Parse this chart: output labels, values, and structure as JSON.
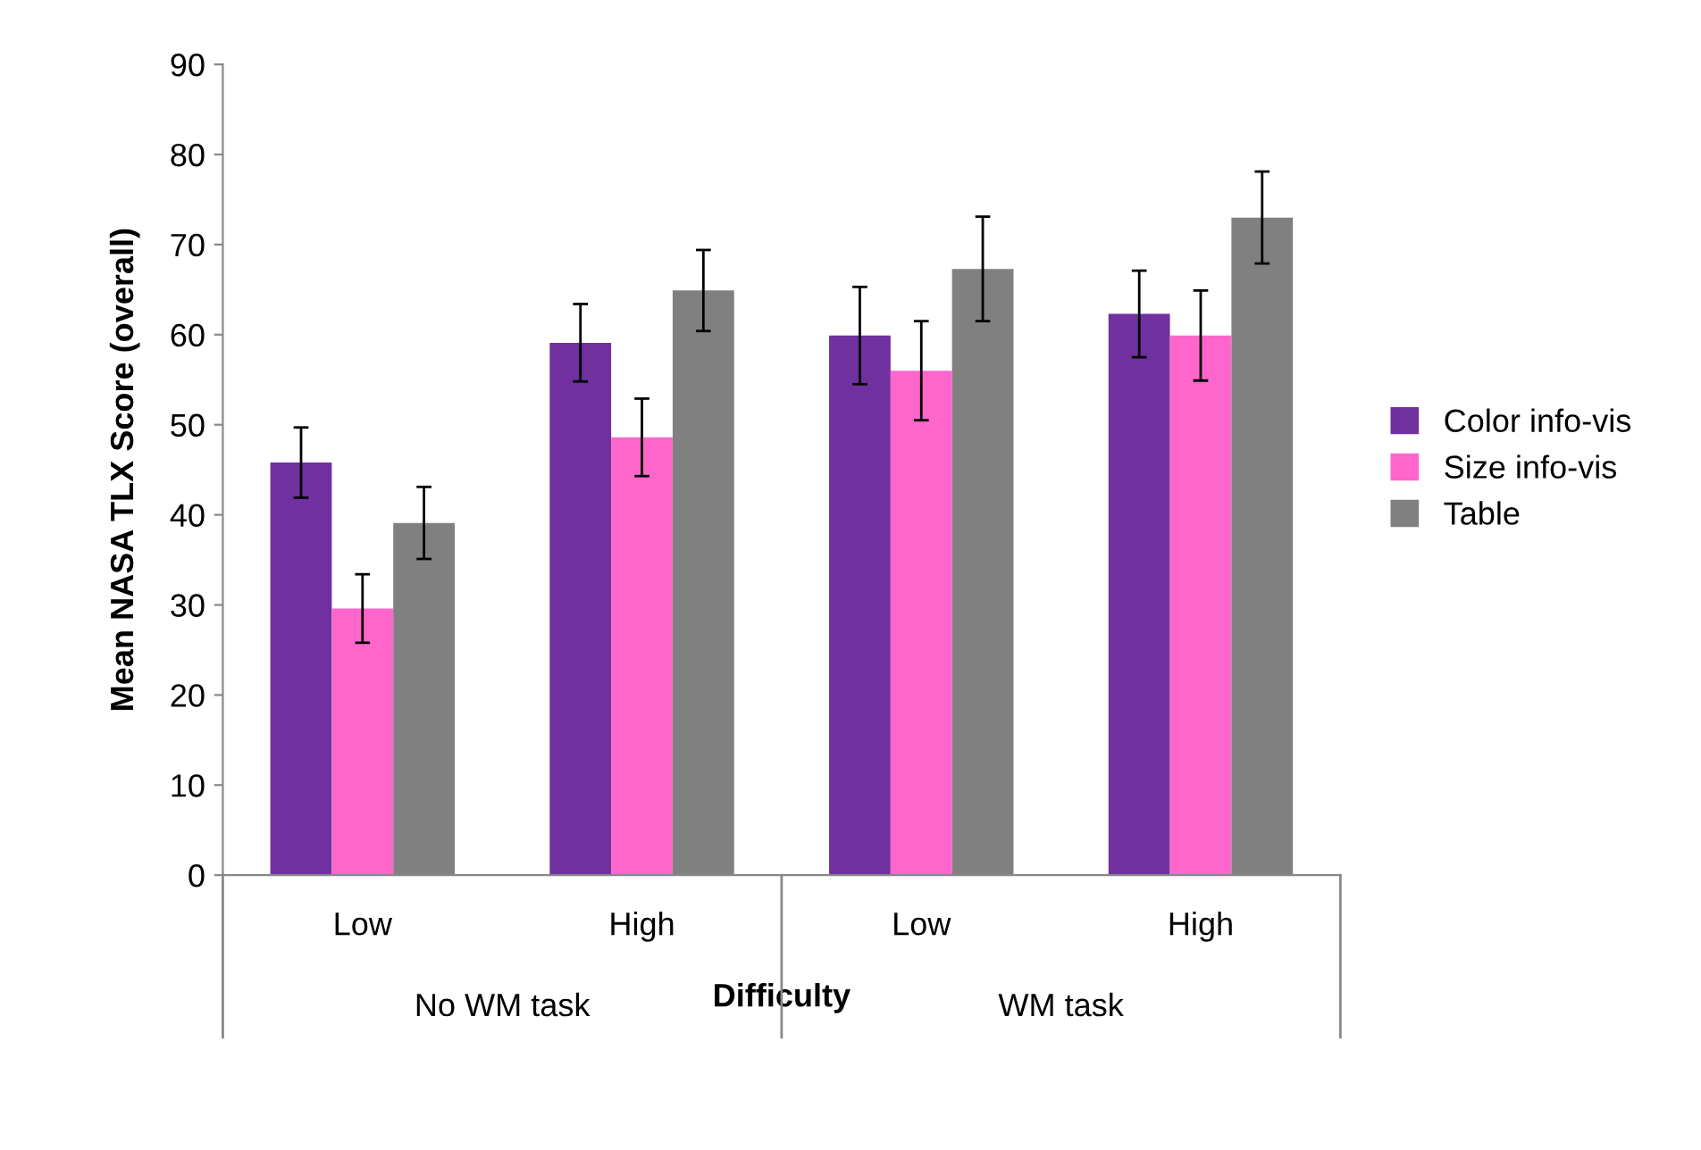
{
  "chart_data": {
    "type": "bar",
    "xlabel": "Difficulty",
    "ylabel": "Mean NASA TLX Score (overall)",
    "categories": [
      "Low",
      "High",
      "Low",
      "High"
    ],
    "annotations": [
      "No WM task",
      "WM task"
    ],
    "series": [
      {
        "name": "Color info-vis",
        "color": "#7030a0",
        "values": [
          45.8,
          59.1,
          59.9,
          62.3
        ],
        "errors": [
          3.9,
          4.3,
          5.4,
          4.8
        ]
      },
      {
        "name": "Size info-vis",
        "color": "#ff66cc",
        "values": [
          29.6,
          48.6,
          56.0,
          59.9
        ],
        "errors": [
          3.8,
          4.3,
          5.5,
          5.0
        ]
      },
      {
        "name": "Table",
        "color": "#808080",
        "values": [
          39.1,
          64.9,
          67.3,
          73.0
        ],
        "errors": [
          4.0,
          4.5,
          5.8,
          5.1
        ]
      }
    ],
    "ylim": [
      0,
      90
    ],
    "yticks": [
      0,
      10,
      20,
      30,
      40,
      50,
      60,
      70,
      80,
      90
    ],
    "grid": false,
    "legend": "right"
  }
}
